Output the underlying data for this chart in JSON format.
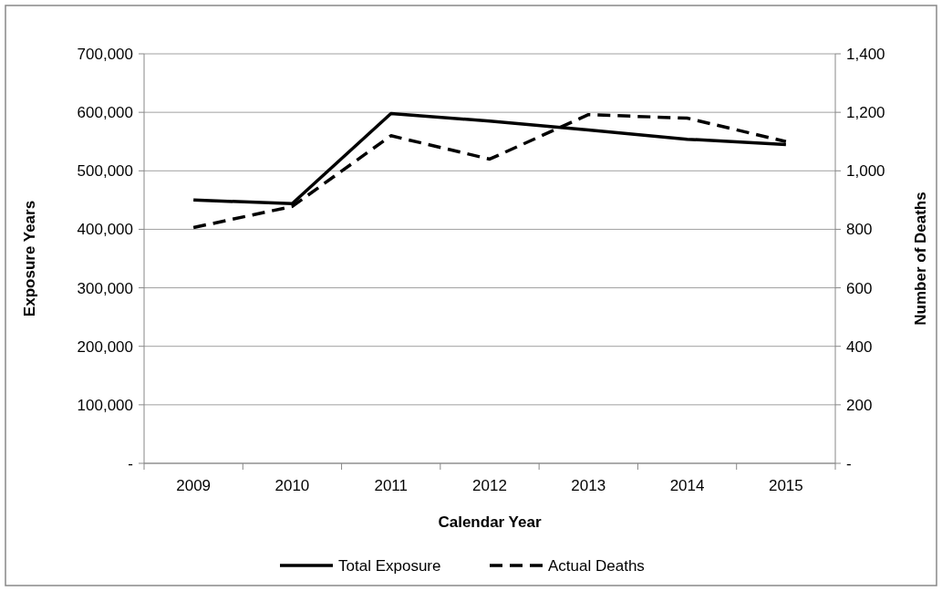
{
  "chart_data": {
    "type": "line",
    "xlabel": "Calendar Year",
    "ylabel": "Exposure Years",
    "y2label": "Number of Deaths",
    "categories": [
      "2009",
      "2010",
      "2011",
      "2012",
      "2013",
      "2014",
      "2015"
    ],
    "series": [
      {
        "name": "Total Exposure",
        "color": "#000000",
        "line_style": "solid",
        "values": [
          450000,
          444000,
          598000,
          585000,
          570000,
          554000,
          545000
        ]
      },
      {
        "name": "Actual Deaths",
        "color": "#000000",
        "line_style": "dashed",
        "axis": "y2",
        "values": [
          806,
          878,
          1120,
          1040,
          1192,
          1180,
          1100
        ]
      }
    ],
    "ylim": [
      0,
      700000
    ],
    "yticks": [
      {
        "value": 0,
        "label": "-"
      },
      {
        "value": 100000,
        "label": "100,000"
      },
      {
        "value": 200000,
        "label": "200,000"
      },
      {
        "value": 300000,
        "label": "300,000"
      },
      {
        "value": 400000,
        "label": "400,000"
      },
      {
        "value": 500000,
        "label": "500,000"
      },
      {
        "value": 600000,
        "label": "600,000"
      },
      {
        "value": 700000,
        "label": "700,000"
      }
    ],
    "y2lim": [
      0,
      1400
    ],
    "y2ticks": [
      {
        "value": 0,
        "label": "-"
      },
      {
        "value": 200,
        "label": "200"
      },
      {
        "value": 400,
        "label": "400"
      },
      {
        "value": 600,
        "label": "600"
      },
      {
        "value": 800,
        "label": "800"
      },
      {
        "value": 1000,
        "label": "1,000"
      },
      {
        "value": 1200,
        "label": "1,200"
      },
      {
        "value": 1400,
        "label": "1,400"
      }
    ],
    "grid": "y",
    "legend": "bottom",
    "marker": "none"
  }
}
